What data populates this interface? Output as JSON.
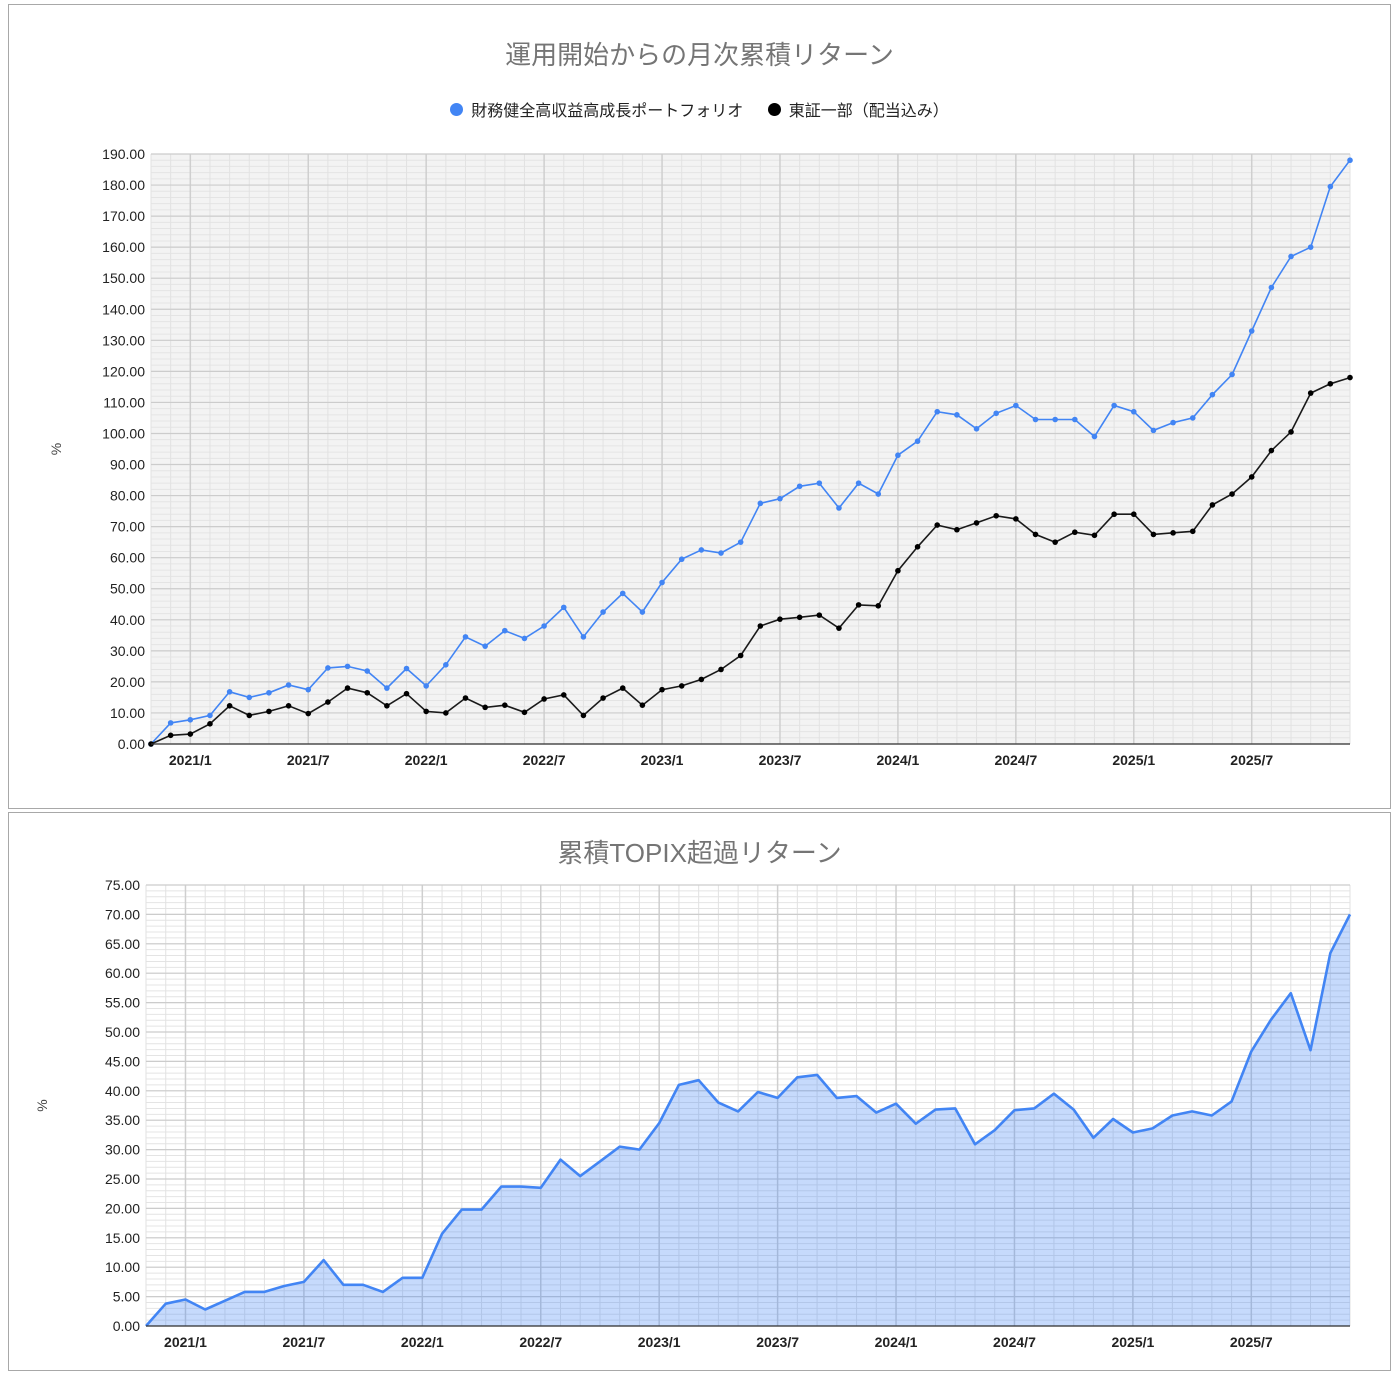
{
  "chart_data": [
    {
      "type": "line",
      "title": "運用開始からの月次累積リターン",
      "xlabel": "",
      "ylabel": "%",
      "ylim": [
        0,
        190
      ],
      "y_ticks": [
        "0.00",
        "10.00",
        "20.00",
        "30.00",
        "40.00",
        "50.00",
        "60.00",
        "70.00",
        "80.00",
        "90.00",
        "100.00",
        "110.00",
        "120.00",
        "130.00",
        "140.00",
        "150.00",
        "160.00",
        "170.00",
        "180.00",
        "190.00"
      ],
      "x_tick_labels": [
        "2021/1",
        "2021/7",
        "2022/1",
        "2022/7",
        "2023/1",
        "2023/7",
        "2024/1",
        "2024/7",
        "2025/1",
        "2025/7"
      ],
      "x_start": "2020/11",
      "x_end": "2025/12",
      "grid": true,
      "legend_position": "top",
      "series": [
        {
          "name": "財務健全高収益高成長ポートフォリオ",
          "color": "#4285f4",
          "values": [
            0,
            6.8,
            7.8,
            9.2,
            16.8,
            15.0,
            16.5,
            19.0,
            17.5,
            24.5,
            25.0,
            23.5,
            18.0,
            24.3,
            18.7,
            25.5,
            34.5,
            31.5,
            36.5,
            34.0,
            38.0,
            44.0,
            34.5,
            42.5,
            48.5,
            42.5,
            52.0,
            59.5,
            62.5,
            61.5,
            65.0,
            77.5,
            79.0,
            83.0,
            84.0,
            76.0,
            84.0,
            80.5,
            93.0,
            97.5,
            107.0,
            106.0,
            101.5,
            106.5,
            109.0,
            104.5,
            104.5,
            104.5,
            99.0,
            109.0,
            107.0,
            101.0,
            103.5,
            105.0,
            112.5,
            119.0,
            133.0,
            147.0,
            157.0,
            160.0,
            179.5,
            188.0
          ]
        },
        {
          "name": "東証一部（配当込み）",
          "color": "#000000",
          "values": [
            0,
            2.8,
            3.2,
            6.5,
            12.3,
            9.2,
            10.5,
            12.3,
            9.8,
            13.5,
            18.0,
            16.5,
            12.3,
            16.2,
            10.5,
            10.0,
            14.8,
            11.8,
            12.5,
            10.2,
            14.5,
            15.8,
            9.2,
            14.8,
            18.0,
            12.5,
            17.5,
            18.7,
            20.8,
            24.0,
            28.5,
            38.0,
            40.2,
            40.8,
            41.5,
            37.3,
            44.8,
            44.5,
            55.8,
            63.5,
            70.5,
            69.0,
            71.2,
            73.5,
            72.5,
            67.5,
            65.0,
            68.2,
            67.2,
            74.0,
            74.0,
            67.5,
            68.0,
            68.5,
            77.0,
            80.5,
            86.0,
            94.5,
            100.5,
            113.0,
            116.0,
            118.0
          ]
        }
      ]
    },
    {
      "type": "area",
      "title": "累積TOPIX超過リターン",
      "xlabel": "",
      "ylabel": "%",
      "ylim": [
        0,
        75
      ],
      "y_ticks": [
        "0.00",
        "5.00",
        "10.00",
        "15.00",
        "20.00",
        "25.00",
        "30.00",
        "35.00",
        "40.00",
        "45.00",
        "50.00",
        "55.00",
        "60.00",
        "65.00",
        "70.00",
        "75.00"
      ],
      "x_tick_labels": [
        "2021/1",
        "2021/7",
        "2022/1",
        "2022/7",
        "2023/1",
        "2023/7",
        "2024/1",
        "2024/7",
        "2025/1",
        "2025/7"
      ],
      "x_start": "2020/11",
      "x_end": "2025/12",
      "grid": true,
      "legend_position": "none",
      "series": [
        {
          "name": "累積TOPIX超過リターン",
          "color": "#4285f4",
          "values": [
            0,
            3.8,
            4.5,
            2.8,
            4.3,
            5.8,
            5.8,
            6.8,
            7.5,
            11.2,
            7.0,
            7.0,
            5.8,
            8.2,
            8.2,
            15.7,
            19.8,
            19.8,
            23.7,
            23.7,
            23.5,
            28.3,
            25.5,
            28.0,
            30.5,
            30.0,
            34.5,
            41.0,
            41.8,
            38.0,
            36.5,
            39.8,
            38.8,
            42.3,
            42.7,
            38.8,
            39.1,
            36.3,
            37.8,
            34.4,
            36.8,
            37.0,
            30.9,
            33.3,
            36.7,
            37.0,
            39.5,
            36.8,
            32.0,
            35.2,
            32.9,
            33.6,
            35.8,
            36.5,
            35.8,
            38.2,
            46.7,
            52.1,
            56.6,
            46.9,
            63.4,
            70.0
          ]
        }
      ]
    }
  ],
  "chart1": {
    "title": "運用開始からの月次累積リターン",
    "ylabel": "%",
    "legend": [
      {
        "label": "財務健全高収益高成長ポートフォリオ",
        "color": "#4285f4"
      },
      {
        "label": "東証一部（配当込み）",
        "color": "#000000"
      }
    ]
  },
  "chart2": {
    "title": "累積TOPIX超過リターン",
    "ylabel": "%"
  }
}
